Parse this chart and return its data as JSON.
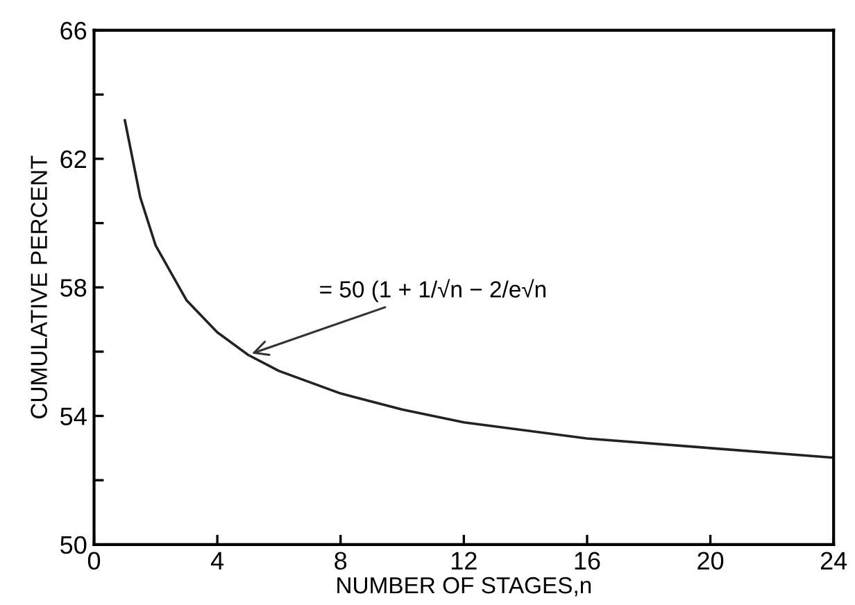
{
  "chart_data": {
    "type": "line",
    "xlabel": "NUMBER OF STAGES,n",
    "ylabel": "CUMULATIVE PERCENT",
    "x": [
      1,
      1.5,
      2,
      3,
      4,
      5,
      6,
      8,
      10,
      12,
      16,
      20,
      24
    ],
    "series": [
      {
        "color": "#222222",
        "values": [
          63.2,
          60.8,
          59.3,
          57.6,
          56.6,
          55.9,
          55.4,
          54.7,
          54.2,
          53.8,
          53.3,
          53.0,
          52.7
        ]
      }
    ],
    "xlim": [
      0,
      24
    ],
    "ylim": [
      50,
      66
    ],
    "xticks": [
      0,
      4,
      8,
      12,
      16,
      20,
      24
    ],
    "yticks": [
      50,
      {
        "value": 52,
        "label": null
      },
      54,
      {
        "value": 56,
        "label": null
      },
      58,
      {
        "value": 60,
        "label": null
      },
      62,
      {
        "value": 64,
        "label": null
      },
      66
    ],
    "annotations": [
      {
        "text": "= 50 (1 + 1/√n − 2/e√n",
        "x": 5,
        "y": 55.9
      }
    ],
    "grid": false,
    "legend": false,
    "marker": "none",
    "line_style": "solid"
  }
}
